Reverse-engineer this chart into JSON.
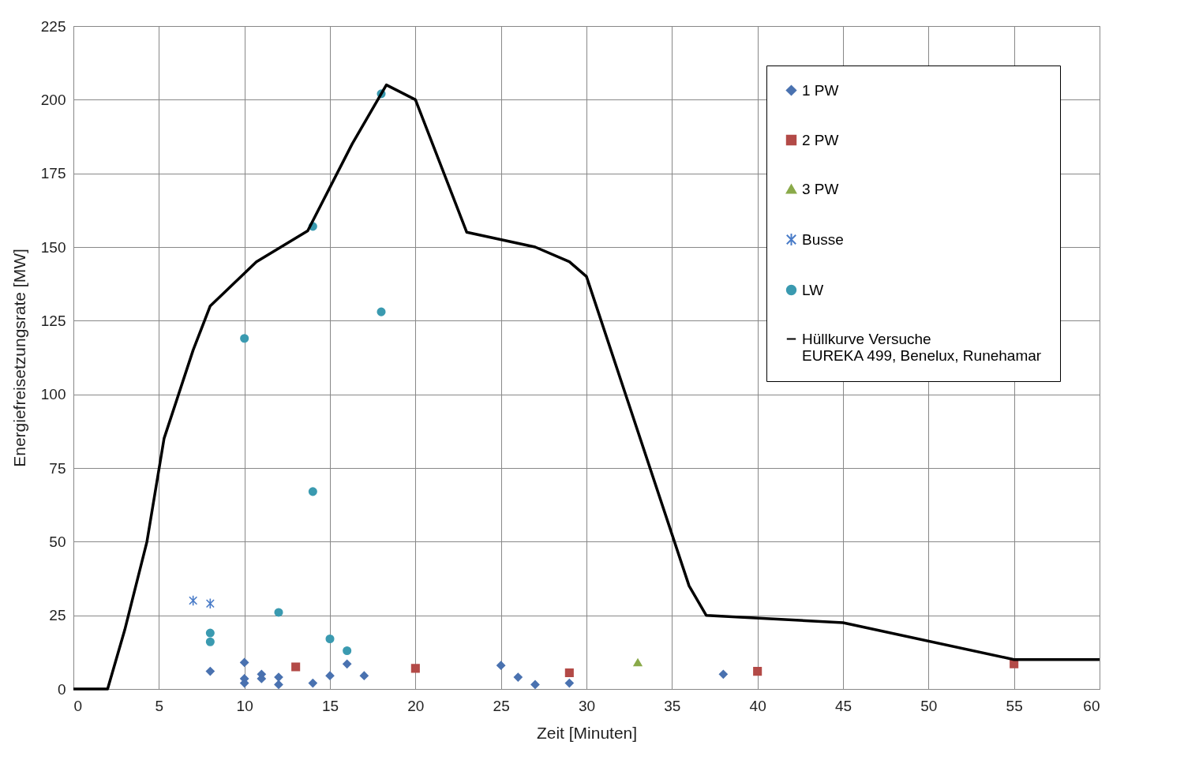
{
  "chart_data": {
    "type": "scatter",
    "xlabel": "Zeit [Minuten]",
    "ylabel": "Energiefreisetzungsrate [MW]",
    "xlim": [
      0,
      60
    ],
    "xticks": [
      0,
      5,
      10,
      15,
      20,
      25,
      30,
      35,
      40,
      45,
      50,
      55,
      60
    ],
    "ylim": [
      0,
      225
    ],
    "yticks": [
      0,
      25,
      50,
      75,
      100,
      125,
      150,
      175,
      200,
      225
    ],
    "grid": true,
    "legend": "top right",
    "series": [
      {
        "name": "1  PW",
        "color": "#4a72b0",
        "marker": "diamond",
        "x": [
          8,
          10,
          10,
          10,
          11,
          11,
          12,
          12,
          14,
          15,
          16,
          17,
          25,
          26,
          27,
          29,
          38
        ],
        "values": [
          6,
          9,
          3.5,
          2,
          5,
          3.5,
          4,
          1.5,
          2,
          4.5,
          8.5,
          4.5,
          8,
          4,
          1.5,
          2,
          5
        ]
      },
      {
        "name": "2 PW",
        "color": "#b34a47",
        "marker": "square",
        "x": [
          13,
          20,
          29,
          40,
          55
        ],
        "values": [
          7.5,
          7,
          5.5,
          6,
          8.5
        ]
      },
      {
        "name": "3 PW",
        "color": "#8aaa4a",
        "marker": "triangle",
        "x": [
          33
        ],
        "values": [
          9
        ]
      },
      {
        "name": "Busse",
        "color": "#4a7cc8",
        "marker": "cross",
        "x": [
          7,
          8
        ],
        "values": [
          30,
          29
        ]
      },
      {
        "name": "LW",
        "color": "#3a9ab0",
        "marker": "circle",
        "x": [
          8,
          8,
          10,
          12,
          14,
          14,
          15,
          16,
          18,
          18
        ],
        "values": [
          19,
          16,
          119,
          26,
          157,
          67,
          17,
          13,
          202,
          128
        ]
      },
      {
        "name": "Hüllkurve Versuche\nEUREKA 499, Benelux, Runehamar",
        "color": "#000000",
        "type": "line",
        "marker": "none",
        "x": [
          0,
          2,
          3,
          4.3,
          5.3,
          7,
          8,
          10.7,
          13.7,
          16.3,
          18.3,
          20,
          23,
          27,
          29,
          30,
          36,
          37,
          45,
          55,
          60
        ],
        "values": [
          0,
          0,
          20,
          50,
          85,
          115,
          130,
          145,
          155.5,
          185,
          205,
          200,
          155,
          150,
          145,
          140,
          35,
          25,
          22.5,
          10,
          10
        ]
      }
    ]
  }
}
